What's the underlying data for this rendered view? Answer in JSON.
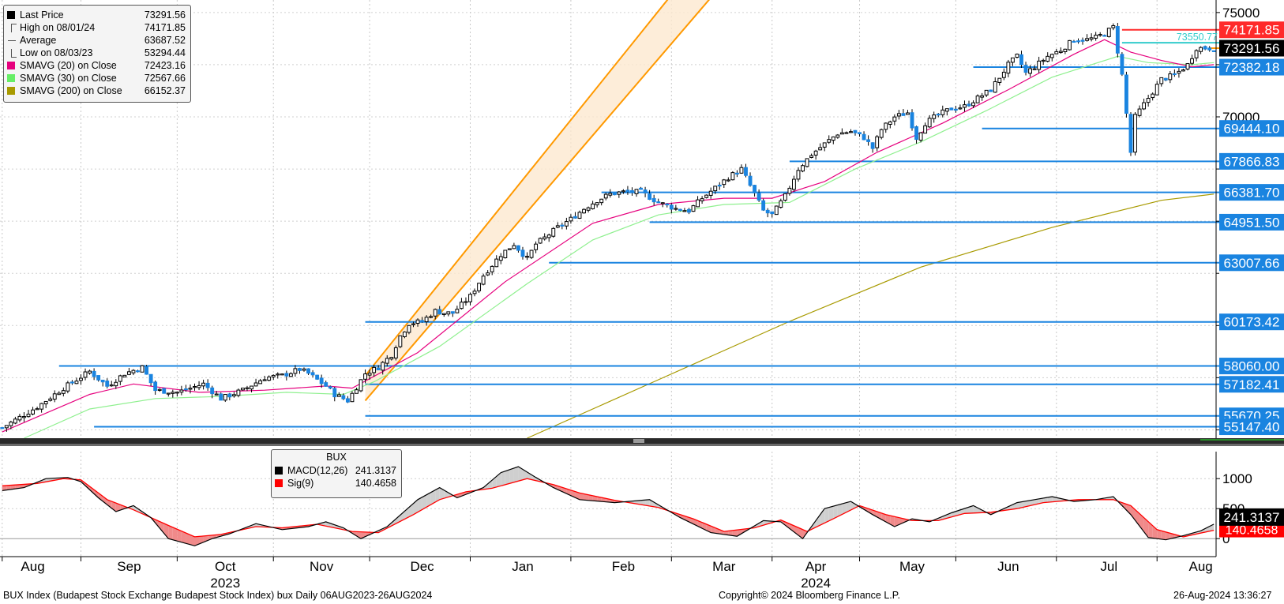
{
  "chart_data": {
    "type": "candlestick",
    "instrument": "BUX Index (Budapest Stock Exchange Budapest Stock Index) bux",
    "frequency": "Daily",
    "period": "06AUG2023-26AUG2024",
    "footer_left": "BUX Index (Budapest Stock Exchange Budapest Stock Index) bux   Daily  06AUG2023-26AUG2024",
    "copyright": "Copyright© 2024 Bloomberg Finance L.P.",
    "timestamp": "26-Aug-2024 13:36:27",
    "x_month_labels": [
      "Aug",
      "Sep",
      "Oct",
      "Nov",
      "Dec",
      "Jan",
      "Feb",
      "Mar",
      "Apr",
      "May",
      "Jun",
      "Jul",
      "Aug"
    ],
    "x_year_labels": [
      "2023",
      "2024"
    ],
    "y_tick_labels": [
      "75000",
      "70000"
    ],
    "y_range": [
      54600,
      75600
    ],
    "legend": [
      {
        "label": "Last Price",
        "value": "73291.56",
        "color": "#000000",
        "marker": "square"
      },
      {
        "label": "High on 08/01/24",
        "value": "74171.85",
        "color": "#555555",
        "marker": "high"
      },
      {
        "label": "Average",
        "value": "63687.52",
        "color": "#555555",
        "marker": "avg"
      },
      {
        "label": "Low on 08/03/23",
        "value": "53294.44",
        "color": "#555555",
        "marker": "low"
      },
      {
        "label": "SMAVG (20)  on Close",
        "value": "72423.16",
        "color": "#e6007e",
        "marker": "square"
      },
      {
        "label": "SMAVG (30)  on Close",
        "value": "72567.66",
        "color": "#66ee66",
        "marker": "square"
      },
      {
        "label": "SMAVG (200)  on Close",
        "value": "66152.37",
        "color": "#a89a00",
        "marker": "square"
      }
    ],
    "price_path": [
      [
        0,
        55100
      ],
      [
        8,
        56100
      ],
      [
        14,
        57000
      ],
      [
        20,
        57800
      ],
      [
        24,
        57100
      ],
      [
        28,
        57700
      ],
      [
        32,
        58000
      ],
      [
        35,
        56900
      ],
      [
        40,
        56800
      ],
      [
        46,
        57200
      ],
      [
        50,
        56500
      ],
      [
        55,
        56900
      ],
      [
        60,
        57500
      ],
      [
        64,
        57600
      ],
      [
        68,
        57900
      ],
      [
        70,
        57700
      ],
      [
        72,
        57400
      ],
      [
        74,
        57100
      ],
      [
        76,
        56700
      ],
      [
        79,
        56400
      ],
      [
        83,
        57700
      ],
      [
        86,
        58000
      ],
      [
        89,
        58600
      ],
      [
        91,
        59500
      ],
      [
        93,
        60100
      ],
      [
        96,
        60200
      ],
      [
        99,
        60700
      ],
      [
        101,
        60600
      ],
      [
        103,
        60600
      ],
      [
        107,
        61400
      ],
      [
        110,
        62400
      ],
      [
        114,
        63400
      ],
      [
        117,
        63900
      ],
      [
        120,
        63200
      ],
      [
        122,
        63900
      ],
      [
        124,
        64200
      ],
      [
        127,
        64700
      ],
      [
        130,
        65100
      ],
      [
        133,
        65600
      ],
      [
        136,
        66000
      ],
      [
        139,
        66300
      ],
      [
        142,
        66400
      ],
      [
        146,
        66400
      ],
      [
        150,
        65900
      ],
      [
        154,
        65600
      ],
      [
        157,
        65500
      ],
      [
        160,
        66100
      ],
      [
        163,
        66600
      ],
      [
        166,
        67100
      ],
      [
        169,
        67500
      ],
      [
        172,
        66300
      ],
      [
        174,
        65500
      ],
      [
        176,
        65300
      ],
      [
        179,
        66200
      ],
      [
        182,
        67500
      ],
      [
        185,
        68200
      ],
      [
        188,
        68700
      ],
      [
        191,
        69200
      ],
      [
        194,
        69300
      ],
      [
        197,
        69000
      ],
      [
        199,
        68500
      ],
      [
        201,
        69400
      ],
      [
        204,
        70000
      ],
      [
        207,
        70200
      ],
      [
        209,
        69000
      ],
      [
        211,
        69700
      ],
      [
        214,
        70100
      ],
      [
        217,
        70400
      ],
      [
        220,
        70500
      ],
      [
        223,
        70900
      ],
      [
        226,
        71300
      ],
      [
        230,
        72500
      ],
      [
        232,
        72900
      ],
      [
        234,
        72100
      ],
      [
        236,
        72400
      ],
      [
        239,
        72900
      ],
      [
        242,
        73200
      ],
      [
        245,
        73700
      ],
      [
        248,
        73700
      ],
      [
        250,
        73800
      ],
      [
        252,
        74000
      ],
      [
        254,
        74300
      ],
      [
        256,
        72000
      ],
      [
        258,
        68300
      ],
      [
        259,
        70000
      ],
      [
        262,
        70900
      ],
      [
        265,
        71800
      ],
      [
        268,
        72000
      ],
      [
        271,
        72500
      ],
      [
        273,
        73300
      ],
      [
        275,
        73300
      ],
      [
        277,
        73291
      ]
    ],
    "sma20_path": [
      [
        0,
        54900
      ],
      [
        20,
        56700
      ],
      [
        30,
        57200
      ],
      [
        45,
        56800
      ],
      [
        60,
        56900
      ],
      [
        74,
        57100
      ],
      [
        80,
        57000
      ],
      [
        95,
        58700
      ],
      [
        115,
        62100
      ],
      [
        135,
        64900
      ],
      [
        150,
        65800
      ],
      [
        165,
        66100
      ],
      [
        176,
        66100
      ],
      [
        188,
        66900
      ],
      [
        200,
        68300
      ],
      [
        215,
        69700
      ],
      [
        230,
        71300
      ],
      [
        245,
        73000
      ],
      [
        252,
        73700
      ],
      [
        258,
        73100
      ],
      [
        265,
        72700
      ],
      [
        272,
        72400
      ],
      [
        277,
        72500
      ]
    ],
    "sma30_path": [
      [
        5,
        54600
      ],
      [
        20,
        56000
      ],
      [
        35,
        56500
      ],
      [
        50,
        56600
      ],
      [
        65,
        56800
      ],
      [
        78,
        56700
      ],
      [
        85,
        57300
      ],
      [
        100,
        59000
      ],
      [
        120,
        62000
      ],
      [
        135,
        64100
      ],
      [
        150,
        65300
      ],
      [
        165,
        65800
      ],
      [
        180,
        65900
      ],
      [
        195,
        67500
      ],
      [
        210,
        68800
      ],
      [
        225,
        70300
      ],
      [
        240,
        71900
      ],
      [
        255,
        72900
      ],
      [
        262,
        72600
      ],
      [
        272,
        72500
      ],
      [
        277,
        72600
      ]
    ],
    "sma200_path": [
      [
        120,
        54600
      ],
      [
        150,
        57400
      ],
      [
        180,
        60200
      ],
      [
        210,
        62800
      ],
      [
        240,
        64700
      ],
      [
        265,
        66000
      ],
      [
        277,
        66300
      ]
    ],
    "channel": {
      "x_start": 83,
      "x_end": 200,
      "lower": [
        56400,
        85000
      ],
      "upper": [
        57600,
        88100
      ]
    },
    "horizontal_levels": [
      {
        "value": 74171.85,
        "label": "74171.85",
        "x_start": 256,
        "color": "#ff2a2a",
        "box": "#ff2a2a"
      },
      {
        "value": 73550.77,
        "label": "73550.77",
        "x_start": 256,
        "color": "#33cccc",
        "box": null
      },
      {
        "value": 73291.56,
        "label": "73291.56",
        "x_start": 276,
        "color": "#ff9900",
        "box": "#000000"
      },
      {
        "value": 72382.18,
        "label": "72382.18",
        "x_start": 222,
        "color": "#1a84e0",
        "box": "#1a84e0"
      },
      {
        "value": 69444.1,
        "label": "69444.10",
        "x_start": 224,
        "color": "#1a84e0",
        "box": "#1a84e0"
      },
      {
        "value": 67866.83,
        "label": "67866.83",
        "x_start": 180,
        "color": "#1a84e0",
        "box": "#1a84e0"
      },
      {
        "value": 66381.7,
        "label": "66381.70",
        "x_start": 137,
        "color": "#1a84e0",
        "box": "#1a84e0"
      },
      {
        "value": 64951.5,
        "label": "64951.50",
        "x_start": 148,
        "color": "#1a84e0",
        "box": "#1a84e0"
      },
      {
        "value": 63007.66,
        "label": "63007.66",
        "x_start": 125,
        "color": "#1a84e0",
        "box": "#1a84e0"
      },
      {
        "value": 60173.42,
        "label": "60173.42",
        "x_start": 83,
        "color": "#1a84e0",
        "box": "#1a84e0"
      },
      {
        "value": 58060.0,
        "label": "58060.00",
        "x_start": 13,
        "color": "#1a84e0",
        "box": "#1a84e0"
      },
      {
        "value": 57182.41,
        "label": "57182.41",
        "x_start": 83,
        "color": "#1a84e0",
        "box": "#1a84e0"
      },
      {
        "value": 55670.25,
        "label": "55670.25",
        "x_start": 83,
        "color": "#1a84e0",
        "box": "#1a84e0"
      },
      {
        "value": 55147.4,
        "label": "55147.40",
        "x_start": 21,
        "color": "#1a84e0",
        "box": "#1a84e0"
      }
    ],
    "macd": {
      "title": "BUX",
      "legend": [
        {
          "label": "MACD(12,26)",
          "value": "241.3137",
          "color": "#000000"
        },
        {
          "label": "Sig(9)",
          "value": "140.4658",
          "color": "#ff0000"
        }
      ],
      "y_tick_labels": [
        "1000",
        "500",
        "0"
      ],
      "y_range": [
        -300,
        1450
      ],
      "last_macd_label": "241.3137",
      "last_sig_label": "140.4658",
      "macd_path": [
        [
          0,
          800
        ],
        [
          5,
          850
        ],
        [
          10,
          1000
        ],
        [
          15,
          1020
        ],
        [
          18,
          950
        ],
        [
          22,
          680
        ],
        [
          26,
          450
        ],
        [
          30,
          550
        ],
        [
          34,
          350
        ],
        [
          38,
          0
        ],
        [
          44,
          -120
        ],
        [
          48,
          0
        ],
        [
          52,
          80
        ],
        [
          58,
          250
        ],
        [
          64,
          150
        ],
        [
          70,
          200
        ],
        [
          74,
          280
        ],
        [
          78,
          180
        ],
        [
          82,
          0
        ],
        [
          88,
          200
        ],
        [
          95,
          650
        ],
        [
          100,
          850
        ],
        [
          104,
          680
        ],
        [
          110,
          850
        ],
        [
          114,
          1100
        ],
        [
          118,
          1200
        ],
        [
          122,
          1020
        ],
        [
          126,
          850
        ],
        [
          132,
          650
        ],
        [
          140,
          600
        ],
        [
          148,
          650
        ],
        [
          155,
          350
        ],
        [
          162,
          100
        ],
        [
          168,
          40
        ],
        [
          174,
          300
        ],
        [
          178,
          280
        ],
        [
          183,
          0
        ],
        [
          188,
          500
        ],
        [
          194,
          620
        ],
        [
          199,
          400
        ],
        [
          204,
          200
        ],
        [
          208,
          330
        ],
        [
          212,
          280
        ],
        [
          217,
          430
        ],
        [
          222,
          550
        ],
        [
          226,
          400
        ],
        [
          232,
          600
        ],
        [
          236,
          650
        ],
        [
          240,
          700
        ],
        [
          245,
          620
        ],
        [
          250,
          650
        ],
        [
          254,
          700
        ],
        [
          258,
          400
        ],
        [
          262,
          20
        ],
        [
          266,
          -20
        ],
        [
          270,
          50
        ],
        [
          274,
          130
        ],
        [
          277,
          241
        ]
      ],
      "sig_path": [
        [
          0,
          880
        ],
        [
          8,
          920
        ],
        [
          14,
          1000
        ],
        [
          18,
          980
        ],
        [
          24,
          650
        ],
        [
          30,
          480
        ],
        [
          38,
          220
        ],
        [
          44,
          30
        ],
        [
          50,
          70
        ],
        [
          58,
          200
        ],
        [
          64,
          180
        ],
        [
          72,
          240
        ],
        [
          80,
          120
        ],
        [
          86,
          100
        ],
        [
          94,
          400
        ],
        [
          100,
          650
        ],
        [
          106,
          780
        ],
        [
          112,
          840
        ],
        [
          120,
          1000
        ],
        [
          126,
          900
        ],
        [
          132,
          760
        ],
        [
          140,
          640
        ],
        [
          150,
          520
        ],
        [
          158,
          330
        ],
        [
          165,
          120
        ],
        [
          172,
          180
        ],
        [
          178,
          310
        ],
        [
          184,
          120
        ],
        [
          190,
          330
        ],
        [
          196,
          550
        ],
        [
          202,
          400
        ],
        [
          208,
          300
        ],
        [
          214,
          300
        ],
        [
          220,
          420
        ],
        [
          226,
          440
        ],
        [
          232,
          500
        ],
        [
          238,
          600
        ],
        [
          246,
          650
        ],
        [
          254,
          650
        ],
        [
          258,
          550
        ],
        [
          264,
          150
        ],
        [
          270,
          30
        ],
        [
          277,
          140
        ]
      ]
    }
  }
}
